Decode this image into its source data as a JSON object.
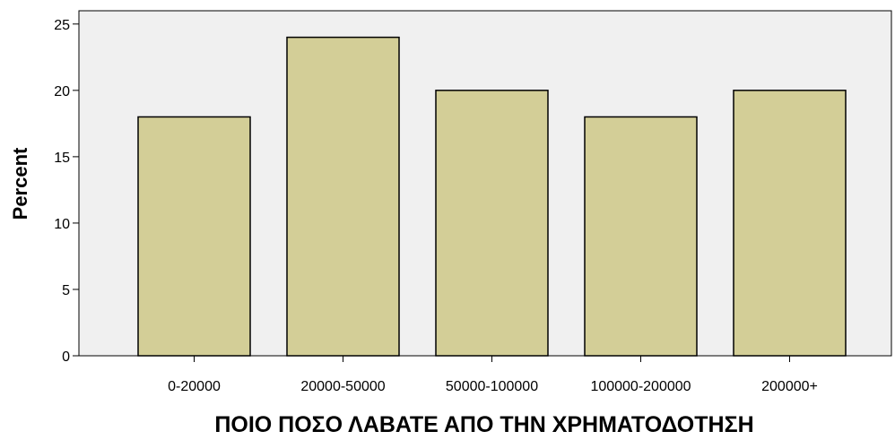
{
  "chart_data": {
    "type": "bar",
    "title": "",
    "xlabel": "ΠΟΙΟ ΠΟΣΟ ΛΑΒΑΤΕ ΑΠΟ ΤΗΝ ΧΡΗΜΑΤΟΔΟΤΗΣΗ",
    "ylabel": "Percent",
    "categories": [
      "0-20000",
      "20000-50000",
      "50000-100000",
      "100000-200000",
      "200000+"
    ],
    "values": [
      18,
      24,
      20,
      18,
      20
    ],
    "ylim": [
      0,
      26
    ],
    "yticks": [
      0,
      5,
      10,
      15,
      20,
      25
    ],
    "grid": false,
    "legend": "none",
    "colors": {
      "bar_fill": "#d3ce97",
      "bar_stroke": "#000000",
      "plot_background": "#f0f0f0"
    }
  }
}
